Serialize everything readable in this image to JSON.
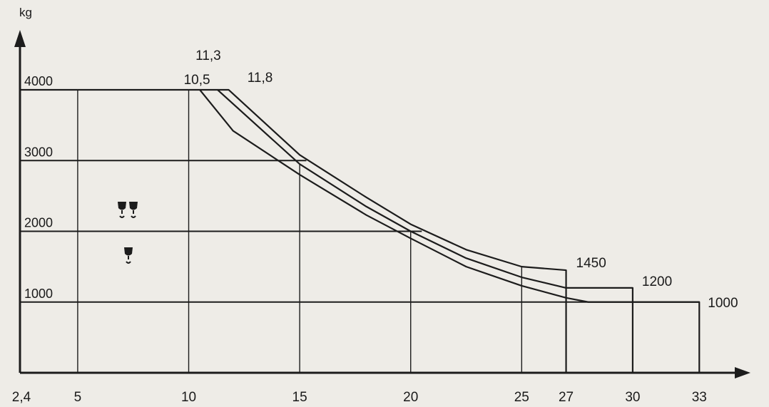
{
  "chart_data": {
    "type": "line",
    "title": "",
    "xlabel": "",
    "ylabel": "kg",
    "xlim": [
      2.4,
      34
    ],
    "ylim": [
      0,
      4600
    ],
    "x_ticks": [
      {
        "value": 2.4,
        "label": "2,4"
      },
      {
        "value": 5,
        "label": "5"
      },
      {
        "value": 10,
        "label": "10"
      },
      {
        "value": 15,
        "label": "15"
      },
      {
        "value": 20,
        "label": "20"
      },
      {
        "value": 25,
        "label": "25"
      },
      {
        "value": 27,
        "label": "27"
      },
      {
        "value": 30,
        "label": "30"
      },
      {
        "value": 33,
        "label": "33"
      }
    ],
    "y_ticks": [
      {
        "value": 1000,
        "label": "1000"
      },
      {
        "value": 2000,
        "label": "2000"
      },
      {
        "value": 3000,
        "label": "3000"
      },
      {
        "value": 4000,
        "label": "4000"
      }
    ],
    "grid": true,
    "series": [
      {
        "id": "s1",
        "points": [
          [
            2.4,
            4000
          ],
          [
            10.5,
            4000
          ],
          [
            12,
            3420
          ],
          [
            15,
            2800
          ],
          [
            18,
            2230
          ],
          [
            20,
            1900
          ],
          [
            22.5,
            1500
          ],
          [
            25,
            1230
          ],
          [
            27,
            1060
          ],
          [
            28,
            1000
          ],
          [
            33,
            1000
          ],
          [
            33,
            0
          ]
        ]
      },
      {
        "id": "s2",
        "points": [
          [
            10.5,
            4000
          ],
          [
            11.3,
            4000
          ],
          [
            15,
            2950
          ],
          [
            18,
            2350
          ],
          [
            20,
            2000
          ],
          [
            22.5,
            1620
          ],
          [
            25,
            1350
          ],
          [
            27,
            1200
          ],
          [
            30,
            1200
          ],
          [
            30,
            0
          ]
        ]
      },
      {
        "id": "s3",
        "points": [
          [
            11.3,
            4000
          ],
          [
            11.8,
            4000
          ],
          [
            15,
            3080
          ],
          [
            18,
            2480
          ],
          [
            20,
            2100
          ],
          [
            22.5,
            1740
          ],
          [
            25,
            1500
          ],
          [
            27,
            1450
          ],
          [
            27,
            0
          ]
        ]
      }
    ],
    "annotations": [
      {
        "x": 10.5,
        "y": 4000,
        "text": "10,5"
      },
      {
        "x": 11.3,
        "y": 4000,
        "text": "11,3"
      },
      {
        "x": 11.8,
        "y": 4000,
        "text": "11,8"
      },
      {
        "x": 27,
        "y": 1450,
        "text": "1450"
      },
      {
        "x": 30,
        "y": 1200,
        "text": "1200"
      },
      {
        "x": 33,
        "y": 1000,
        "text": "1000"
      }
    ],
    "legend": [
      {
        "icon": "double-hook-icon",
        "count": 2
      },
      {
        "icon": "single-hook-icon",
        "count": 1
      }
    ]
  }
}
